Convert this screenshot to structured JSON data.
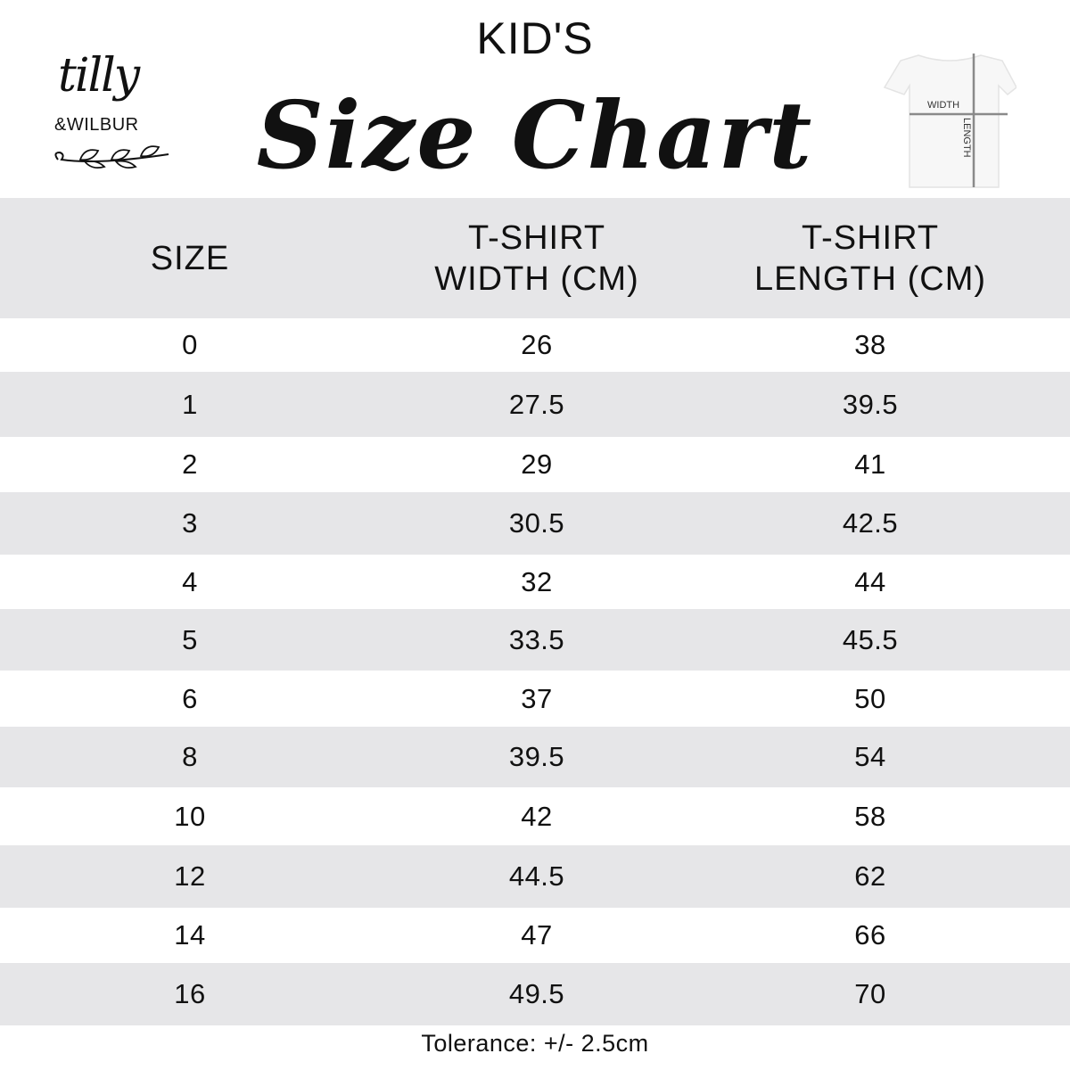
{
  "logo": {
    "line1": "tilly",
    "line2": "&WILBUR"
  },
  "header": {
    "kicker": "KID'S",
    "title": "Size Chart"
  },
  "diagram": {
    "width_label": "WIDTH",
    "length_label": "LENGTH"
  },
  "chart_data": {
    "type": "table",
    "columns": [
      {
        "line1": "SIZE",
        "line2": ""
      },
      {
        "line1": "T-SHIRT",
        "line2": "WIDTH (CM)"
      },
      {
        "line1": "T-SHIRT",
        "line2": "LENGTH (CM)"
      }
    ],
    "rows": [
      [
        "0",
        "26",
        "38"
      ],
      [
        "1",
        "27.5",
        "39.5"
      ],
      [
        "2",
        "29",
        "41"
      ],
      [
        "3",
        "30.5",
        "42.5"
      ],
      [
        "4",
        "32",
        "44"
      ],
      [
        "5",
        "33.5",
        "45.5"
      ],
      [
        "6",
        "37",
        "50"
      ],
      [
        "8",
        "39.5",
        "54"
      ],
      [
        "10",
        "42",
        "58"
      ],
      [
        "12",
        "44.5",
        "62"
      ],
      [
        "14",
        "47",
        "66"
      ],
      [
        "16",
        "49.5",
        "70"
      ]
    ]
  },
  "footer": {
    "tolerance": "Tolerance: +/- 2.5cm"
  },
  "colors": {
    "band": "#e6e6e8",
    "text": "#111111"
  }
}
